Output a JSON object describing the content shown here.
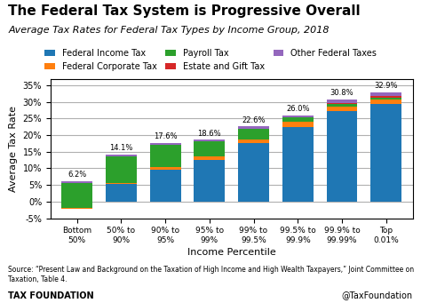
{
  "chart_data": {
    "type": "bar",
    "stacked": true,
    "title": "The Federal Tax System is Progressive Overall",
    "subtitle": "Average Tax Rates for Federal Tax Types by Income Group, 2018",
    "xlabel": "Income Percentile",
    "ylabel": "Average Tax Rate",
    "annotations": [
      "Source: “Present Law and Background on the Taxation of High Income and High Wealth Taxpayers,” Joint Committee on Taxation, Table 4.",
      "TAX FOUNDATION",
      "@TaxFoundation"
    ],
    "categories": [
      "Bottom\n50%",
      "50% to\n90%",
      "90% to\n95%",
      "95% to\n99%",
      "99% to\n99.5%",
      "99.5% to\n99.9%",
      "99.9% to\n99.99%",
      "Top\n0.01%"
    ],
    "series": [
      {
        "name": "Federal Income Tax",
        "values": [
          -2.2,
          5.2,
          9.5,
          12.5,
          17.5,
          22.5,
          27.2,
          29.5
        ]
      },
      {
        "name": "Federal Corporate Tax",
        "values": [
          0.3,
          0.5,
          0.8,
          1.0,
          1.3,
          1.5,
          1.3,
          1.2
        ]
      },
      {
        "name": "Payroll Tax",
        "values": [
          7.5,
          7.8,
          6.8,
          4.6,
          3.0,
          1.3,
          0.8,
          0.5
        ]
      },
      {
        "name": "Estate and Gift Tax",
        "values": [
          0.0,
          0.0,
          0.0,
          0.0,
          0.1,
          0.2,
          0.5,
          0.6
        ]
      },
      {
        "name": "Other Federal Taxes",
        "values": [
          0.6,
          0.6,
          0.5,
          0.5,
          0.7,
          0.5,
          1.0,
          1.1
        ]
      }
    ],
    "totals": [
      6.2,
      14.1,
      17.6,
      18.6,
      22.6,
      26.0,
      30.8,
      32.9
    ],
    "total_labels": [
      "6.2%",
      "14.1%",
      "17.6%",
      "18.6%",
      "22.6%",
      "26.0%",
      "30.8%",
      "32.9%"
    ],
    "ylim": [
      -5,
      37
    ],
    "yticks": [
      {
        "value": -5,
        "label": "-5%"
      },
      {
        "value": 0,
        "label": "0%"
      },
      {
        "value": 5,
        "label": "5%"
      },
      {
        "value": 10,
        "label": "10%"
      },
      {
        "value": 15,
        "label": "15%"
      },
      {
        "value": 20,
        "label": "20%"
      },
      {
        "value": 25,
        "label": "25%"
      },
      {
        "value": 30,
        "label": "30%"
      },
      {
        "value": 35,
        "label": "35%"
      }
    ],
    "grid": true,
    "legend": "upper center"
  }
}
